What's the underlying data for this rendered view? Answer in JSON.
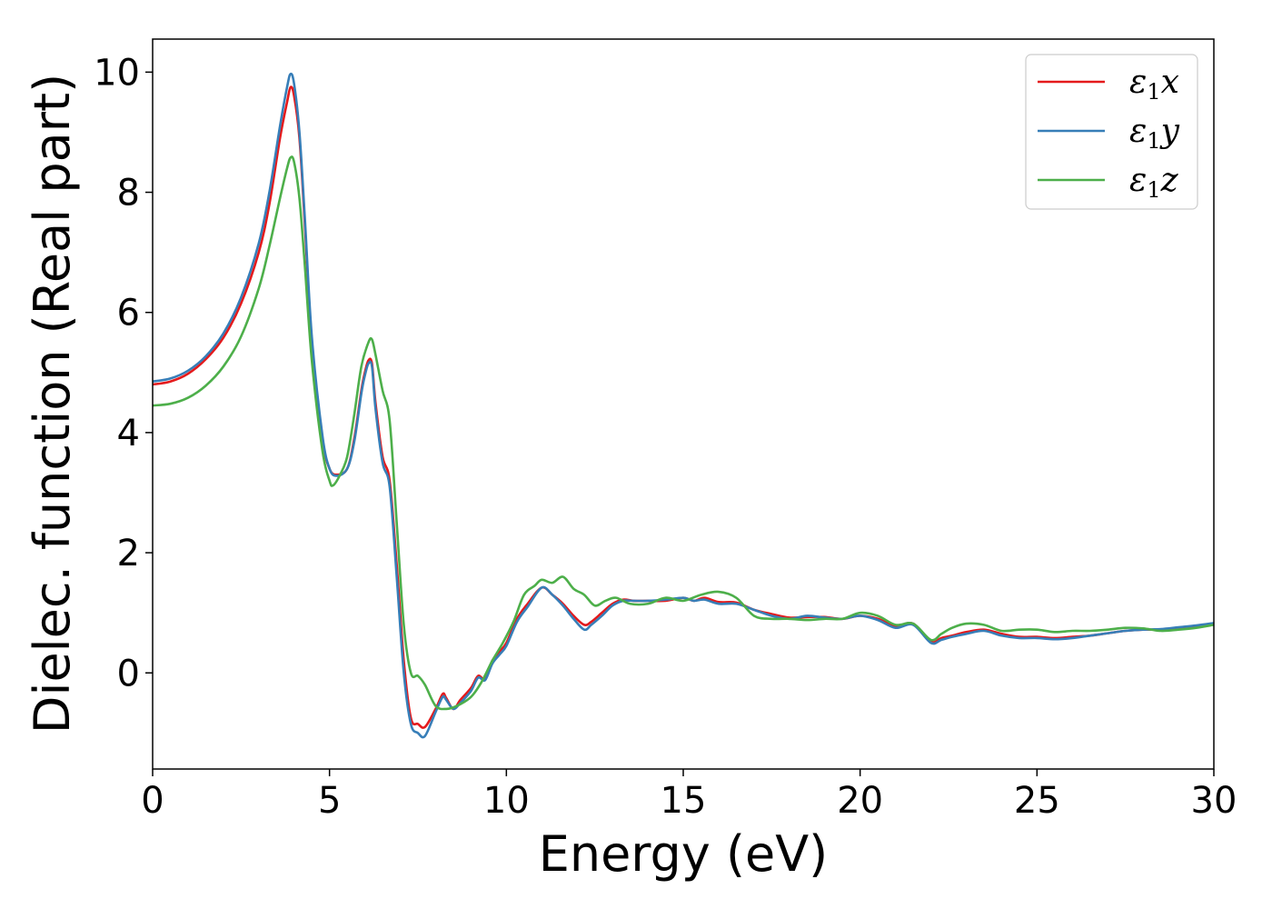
{
  "chart_data": {
    "type": "line",
    "title": "",
    "xlabel": "Energy (eV)",
    "ylabel": "Dielec. function (Real part)",
    "xlim": [
      0,
      30
    ],
    "ylim": [
      -1.6,
      10.55
    ],
    "xticks": [
      0,
      5,
      10,
      15,
      20,
      25,
      30
    ],
    "yticks": [
      0,
      2,
      4,
      6,
      8,
      10
    ],
    "grid": false,
    "legend_position": "top-right",
    "series": [
      {
        "name": "ε1x",
        "legend_main": "ε",
        "legend_sub": "1",
        "legend_tail": "x",
        "color": "#e41a1c",
        "x": [
          0,
          0.5,
          1,
          1.5,
          2,
          2.5,
          3,
          3.3,
          3.6,
          3.8,
          3.9,
          4.0,
          4.15,
          4.3,
          4.5,
          4.8,
          5.0,
          5.2,
          5.5,
          5.7,
          5.9,
          6.0,
          6.1,
          6.2,
          6.3,
          6.5,
          6.7,
          6.9,
          7.1,
          7.3,
          7.5,
          7.7,
          8.0,
          8.2,
          8.3,
          8.5,
          8.7,
          9.0,
          9.2,
          9.4,
          9.6,
          9.8,
          10.0,
          10.3,
          10.6,
          11.0,
          11.3,
          11.6,
          11.9,
          12.2,
          12.4,
          12.7,
          13.0,
          13.3,
          13.6,
          14.0,
          14.5,
          15.0,
          15.3,
          15.6,
          16.0,
          16.5,
          17.0,
          17.5,
          18.0,
          18.5,
          19.0,
          19.5,
          20.0,
          20.5,
          21.0,
          21.5,
          22.0,
          22.3,
          22.6,
          23.0,
          23.5,
          24.0,
          24.5,
          25.0,
          25.5,
          26.0,
          26.5,
          27.0,
          27.5,
          28.0,
          28.5,
          29.0,
          29.5,
          30.0
        ],
        "y": [
          4.8,
          4.85,
          4.98,
          5.22,
          5.58,
          6.15,
          7.0,
          7.8,
          8.9,
          9.5,
          9.75,
          9.6,
          8.9,
          7.5,
          5.5,
          3.9,
          3.4,
          3.3,
          3.4,
          3.9,
          4.7,
          5.0,
          5.2,
          5.15,
          4.5,
          3.6,
          3.2,
          1.8,
          0.2,
          -0.75,
          -0.85,
          -0.9,
          -0.6,
          -0.35,
          -0.42,
          -0.6,
          -0.45,
          -0.25,
          -0.05,
          -0.1,
          0.2,
          0.35,
          0.5,
          0.9,
          1.15,
          1.42,
          1.3,
          1.15,
          0.95,
          0.8,
          0.85,
          1.0,
          1.15,
          1.22,
          1.2,
          1.2,
          1.2,
          1.25,
          1.2,
          1.25,
          1.18,
          1.17,
          1.05,
          0.98,
          0.92,
          0.93,
          0.93,
          0.9,
          0.95,
          0.9,
          0.78,
          0.82,
          0.52,
          0.58,
          0.62,
          0.68,
          0.72,
          0.65,
          0.6,
          0.6,
          0.58,
          0.6,
          0.62,
          0.66,
          0.7,
          0.72,
          0.72,
          0.75,
          0.78,
          0.82
        ]
      },
      {
        "name": "ε1y",
        "legend_main": "ε",
        "legend_sub": "1",
        "legend_tail": "y",
        "color": "#377eb8",
        "x": [
          0,
          0.5,
          1,
          1.5,
          2,
          2.5,
          3,
          3.3,
          3.6,
          3.8,
          3.9,
          4.0,
          4.15,
          4.3,
          4.5,
          4.8,
          5.0,
          5.2,
          5.5,
          5.7,
          5.9,
          6.0,
          6.1,
          6.2,
          6.3,
          6.5,
          6.7,
          6.9,
          7.1,
          7.3,
          7.5,
          7.7,
          8.0,
          8.2,
          8.3,
          8.5,
          8.7,
          9.0,
          9.2,
          9.4,
          9.6,
          9.8,
          10.0,
          10.3,
          10.6,
          11.0,
          11.3,
          11.6,
          11.9,
          12.2,
          12.4,
          12.7,
          13.0,
          13.3,
          13.6,
          14.0,
          14.5,
          15.0,
          15.3,
          15.6,
          16.0,
          16.5,
          17.0,
          17.5,
          18.0,
          18.5,
          19.0,
          19.5,
          20.0,
          20.5,
          21.0,
          21.5,
          22.0,
          22.3,
          22.6,
          23.0,
          23.5,
          24.0,
          24.5,
          25.0,
          25.5,
          26.0,
          26.5,
          27.0,
          27.5,
          28.0,
          28.5,
          29.0,
          29.5,
          30.0
        ],
        "y": [
          4.85,
          4.9,
          5.03,
          5.27,
          5.65,
          6.25,
          7.15,
          8.0,
          9.1,
          9.75,
          9.97,
          9.8,
          9.0,
          7.6,
          5.6,
          3.95,
          3.4,
          3.28,
          3.4,
          3.85,
          4.65,
          4.95,
          5.15,
          5.1,
          4.4,
          3.5,
          3.1,
          1.6,
          0.0,
          -0.85,
          -1.0,
          -1.05,
          -0.65,
          -0.4,
          -0.45,
          -0.6,
          -0.5,
          -0.3,
          -0.08,
          -0.12,
          0.15,
          0.3,
          0.45,
          0.85,
          1.1,
          1.42,
          1.3,
          1.12,
          0.9,
          0.72,
          0.8,
          0.95,
          1.12,
          1.2,
          1.2,
          1.2,
          1.22,
          1.25,
          1.2,
          1.22,
          1.15,
          1.15,
          1.05,
          0.95,
          0.9,
          0.95,
          0.92,
          0.9,
          0.95,
          0.88,
          0.75,
          0.8,
          0.5,
          0.55,
          0.6,
          0.65,
          0.7,
          0.62,
          0.58,
          0.58,
          0.56,
          0.58,
          0.62,
          0.66,
          0.7,
          0.72,
          0.73,
          0.76,
          0.79,
          0.83
        ]
      },
      {
        "name": "ε1z",
        "legend_main": "ε",
        "legend_sub": "1",
        "legend_tail": "z",
        "color": "#4daf4a",
        "x": [
          0,
          0.5,
          1,
          1.5,
          2,
          2.5,
          3,
          3.3,
          3.6,
          3.8,
          3.9,
          4.0,
          4.15,
          4.3,
          4.5,
          4.8,
          5.0,
          5.1,
          5.3,
          5.5,
          5.7,
          5.9,
          6.1,
          6.2,
          6.3,
          6.5,
          6.7,
          6.9,
          7.1,
          7.3,
          7.5,
          7.7,
          8.0,
          8.3,
          8.6,
          9.0,
          9.3,
          9.6,
          9.9,
          10.2,
          10.5,
          10.8,
          11.0,
          11.3,
          11.6,
          11.9,
          12.2,
          12.5,
          12.8,
          13.1,
          13.5,
          14.0,
          14.5,
          15.0,
          15.5,
          16.0,
          16.5,
          17.0,
          17.5,
          18.0,
          18.5,
          19.0,
          19.5,
          20.0,
          20.5,
          21.0,
          21.5,
          22.0,
          22.3,
          22.6,
          23.0,
          23.5,
          24.0,
          24.5,
          25.0,
          25.5,
          26.0,
          26.5,
          27.0,
          27.5,
          28.0,
          28.5,
          29.0,
          29.5,
          30.0
        ],
        "y": [
          4.45,
          4.48,
          4.58,
          4.78,
          5.1,
          5.6,
          6.4,
          7.1,
          7.9,
          8.4,
          8.58,
          8.5,
          7.9,
          6.8,
          5.2,
          3.7,
          3.2,
          3.12,
          3.3,
          3.6,
          4.3,
          5.1,
          5.5,
          5.55,
          5.3,
          4.7,
          4.2,
          2.5,
          0.8,
          0.0,
          -0.05,
          -0.2,
          -0.55,
          -0.6,
          -0.55,
          -0.4,
          -0.15,
          0.2,
          0.5,
          0.85,
          1.3,
          1.45,
          1.55,
          1.5,
          1.6,
          1.4,
          1.3,
          1.12,
          1.2,
          1.25,
          1.15,
          1.15,
          1.25,
          1.2,
          1.3,
          1.35,
          1.25,
          0.95,
          0.9,
          0.9,
          0.88,
          0.9,
          0.9,
          1.0,
          0.95,
          0.8,
          0.82,
          0.55,
          0.65,
          0.75,
          0.82,
          0.8,
          0.7,
          0.72,
          0.72,
          0.68,
          0.7,
          0.7,
          0.72,
          0.75,
          0.74,
          0.7,
          0.72,
          0.75,
          0.8
        ]
      }
    ]
  }
}
